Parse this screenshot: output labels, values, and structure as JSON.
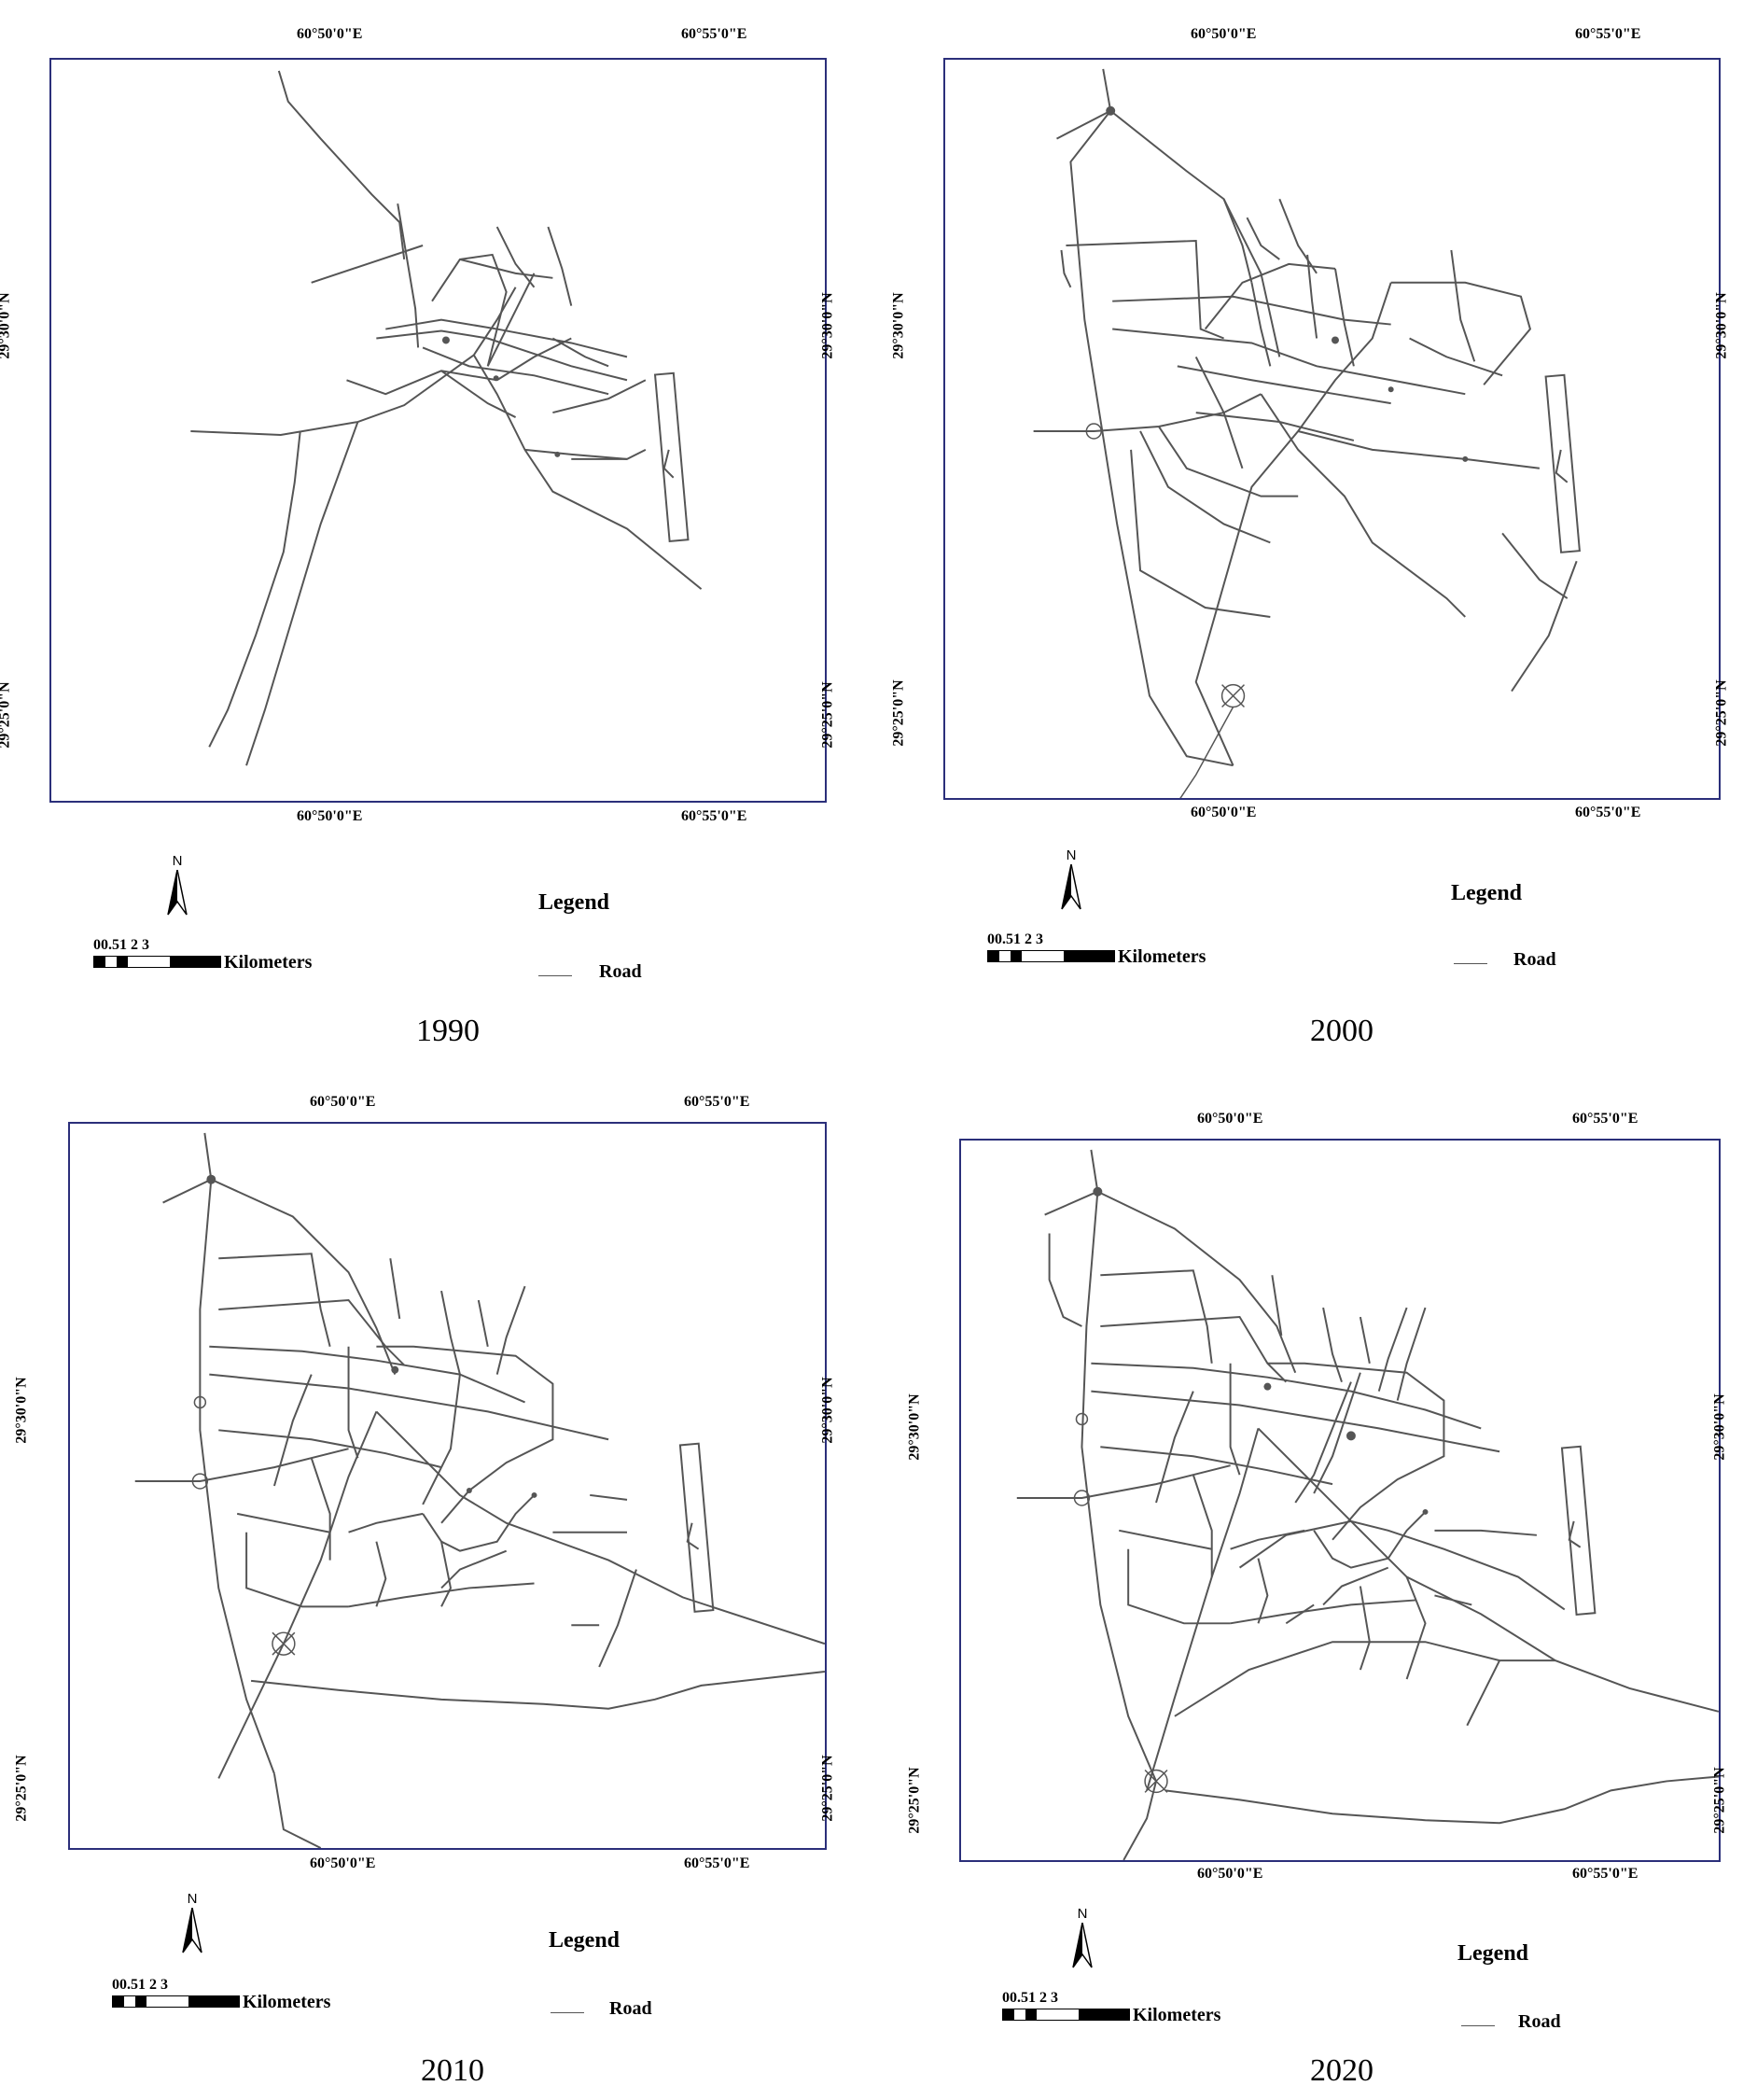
{
  "maps": [
    {
      "year": "1990",
      "top_left_lon": "60°50'0\"E",
      "top_right_lon": "60°55'0\"E",
      "bottom_left_lon": "60°50'0\"E",
      "bottom_right_lon": "60°55'0\"E",
      "left_upper_lat": "29°30'0\"N",
      "left_lower_lat": "29°25'0\"N",
      "right_upper_lat": "29°30'0\"N",
      "right_lower_lat": "29°25'0\"N"
    },
    {
      "year": "2000",
      "top_left_lon": "60°50'0\"E",
      "top_right_lon": "60°55'0\"E",
      "bottom_left_lon": "60°50'0\"E",
      "bottom_right_lon": "60°55'0\"E",
      "left_upper_lat": "29°30'0\"N",
      "left_lower_lat": "29°25'0\"N",
      "right_upper_lat": "29°30'0\"N",
      "right_lower_lat": "29°25'0\"N"
    },
    {
      "year": "2010",
      "top_left_lon": "60°50'0\"E",
      "top_right_lon": "60°55'0\"E",
      "bottom_left_lon": "60°50'0\"E",
      "bottom_right_lon": "60°55'0\"E",
      "left_upper_lat": "29°30'0\"N",
      "left_lower_lat": "29°25'0\"N",
      "right_upper_lat": "29°30'0\"N",
      "right_lower_lat": "29°25'0\"N"
    },
    {
      "year": "2020",
      "top_left_lon": "60°50'0\"E",
      "top_right_lon": "60°55'0\"E",
      "bottom_left_lon": "60°50'0\"E",
      "bottom_right_lon": "60°55'0\"E",
      "left_upper_lat": "29°30'0\"N",
      "left_lower_lat": "29°25'0\"N",
      "right_upper_lat": "29°30'0\"N",
      "right_lower_lat": "29°25'0\"N"
    }
  ],
  "north_label": "N",
  "scale": {
    "ticks": "00.51     2     3",
    "unit": "Kilometers"
  },
  "legend": {
    "title": "Legend",
    "road_label": "Road"
  },
  "colors": {
    "frame": "#2b2f7a",
    "road": "#555555",
    "background": "#ffffff"
  }
}
